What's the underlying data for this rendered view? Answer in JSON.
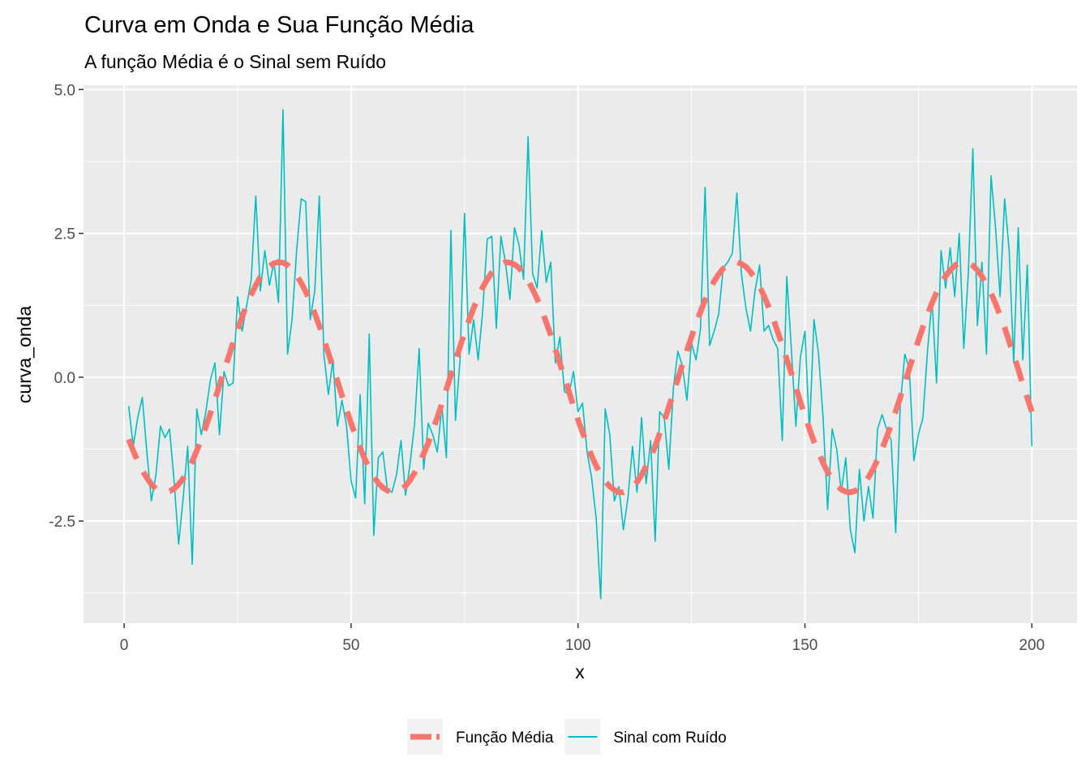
{
  "chart_data": {
    "type": "line",
    "title": "Curva em Onda e Sua Função Média",
    "subtitle": "A função Média é o Sinal sem Ruído",
    "x_label": "x",
    "y_label": "curva_onda",
    "x": [
      1,
      2,
      3,
      4,
      5,
      6,
      7,
      8,
      9,
      10,
      11,
      12,
      13,
      14,
      15,
      16,
      17,
      18,
      19,
      20,
      21,
      22,
      23,
      24,
      25,
      26,
      27,
      28,
      29,
      30,
      31,
      32,
      33,
      34,
      35,
      36,
      37,
      38,
      39,
      40,
      41,
      42,
      43,
      44,
      45,
      46,
      47,
      48,
      49,
      50,
      51,
      52,
      53,
      54,
      55,
      56,
      57,
      58,
      59,
      60,
      61,
      62,
      63,
      64,
      65,
      66,
      67,
      68,
      69,
      70,
      71,
      72,
      73,
      74,
      75,
      76,
      77,
      78,
      79,
      80,
      81,
      82,
      83,
      84,
      85,
      86,
      87,
      88,
      89,
      90,
      91,
      92,
      93,
      94,
      95,
      96,
      97,
      98,
      99,
      100,
      101,
      102,
      103,
      104,
      105,
      106,
      107,
      108,
      109,
      110,
      111,
      112,
      113,
      114,
      115,
      116,
      117,
      118,
      119,
      120,
      121,
      122,
      123,
      124,
      125,
      126,
      127,
      128,
      129,
      130,
      131,
      132,
      133,
      134,
      135,
      136,
      137,
      138,
      139,
      140,
      141,
      142,
      143,
      144,
      145,
      146,
      147,
      148,
      149,
      150,
      151,
      152,
      153,
      154,
      155,
      156,
      157,
      158,
      159,
      160,
      161,
      162,
      163,
      164,
      165,
      166,
      167,
      168,
      169,
      170,
      171,
      172,
      173,
      174,
      175,
      176,
      177,
      178,
      179,
      180,
      181,
      182,
      183,
      184,
      185,
      186,
      187,
      188,
      189,
      190,
      191,
      192,
      193,
      194,
      195,
      196,
      197,
      198,
      199,
      200
    ],
    "series": [
      {
        "name": "Função Média",
        "color": "#F8766D",
        "linetype": "dashed",
        "values": [
          -1.08,
          -1.28,
          -1.46,
          -1.62,
          -1.75,
          -1.86,
          -1.94,
          -1.98,
          -2.0,
          -1.98,
          -1.94,
          -1.86,
          -1.76,
          -1.62,
          -1.46,
          -1.28,
          -1.08,
          -0.86,
          -0.63,
          -0.39,
          -0.14,
          0.11,
          0.35,
          0.6,
          0.83,
          1.05,
          1.26,
          1.44,
          1.6,
          1.74,
          1.85,
          1.93,
          1.98,
          2.0,
          1.99,
          1.95,
          1.87,
          1.77,
          1.64,
          1.49,
          1.31,
          1.11,
          0.89,
          0.66,
          0.42,
          0.17,
          -0.07,
          -0.32,
          -0.56,
          -0.8,
          -1.02,
          -1.23,
          -1.42,
          -1.58,
          -1.72,
          -1.84,
          -1.92,
          -1.97,
          -2.0,
          -1.99,
          -1.95,
          -1.89,
          -1.79,
          -1.66,
          -1.51,
          -1.33,
          -1.14,
          -0.92,
          -0.7,
          -0.46,
          -0.21,
          0.04,
          0.29,
          0.53,
          0.77,
          0.99,
          1.2,
          1.39,
          1.56,
          1.7,
          1.82,
          1.91,
          1.97,
          2.0,
          1.99,
          1.96,
          1.9,
          1.8,
          1.68,
          1.53,
          1.36,
          1.17,
          0.95,
          0.73,
          0.49,
          0.24,
          0.0,
          -0.25,
          -0.5,
          -0.74,
          -0.96,
          -1.17,
          -1.37,
          -1.54,
          -1.69,
          -1.81,
          -1.9,
          -1.96,
          -2.0,
          -2.0,
          -1.97,
          -1.91,
          -1.82,
          -1.7,
          -1.55,
          -1.38,
          -1.2,
          -0.98,
          -0.76,
          -0.52,
          -0.28,
          -0.03,
          0.22,
          0.46,
          0.7,
          0.93,
          1.14,
          1.34,
          1.51,
          1.67,
          1.79,
          1.89,
          1.96,
          1.99,
          2.0,
          1.97,
          1.92,
          1.83,
          1.72,
          1.58,
          1.41,
          1.22,
          1.02,
          0.79,
          0.56,
          0.31,
          0.07,
          -0.18,
          -0.43,
          -0.67,
          -0.9,
          -1.12,
          -1.31,
          -1.49,
          -1.65,
          -1.78,
          -1.88,
          -1.95,
          -1.99,
          -2.0,
          -1.98,
          -1.93,
          -1.85,
          -1.74,
          -1.6,
          -1.43,
          -1.25,
          -1.04,
          -0.83,
          -0.59,
          -0.35,
          -0.1,
          0.15,
          0.4,
          0.64,
          0.87,
          1.09,
          1.29,
          1.47,
          1.63,
          1.76,
          1.86,
          1.94,
          1.99,
          2.0,
          1.98,
          1.94,
          1.86,
          1.75,
          1.62,
          1.46,
          1.28,
          1.07,
          0.86,
          0.62,
          0.38,
          0.14,
          -0.12,
          -0.36,
          -0.6
        ]
      },
      {
        "name": "Sinal com Ruído",
        "color": "#00BFC4",
        "linetype": "solid",
        "values": [
          -0.5,
          -1.2,
          -0.7,
          -0.35,
          -1.3,
          -2.15,
          -1.7,
          -0.85,
          -1.05,
          -0.9,
          -1.8,
          -2.9,
          -2.1,
          -1.2,
          -3.25,
          -0.55,
          -1.0,
          -0.6,
          -0.05,
          0.25,
          -1.0,
          0.1,
          -0.15,
          -0.1,
          1.4,
          0.8,
          1.25,
          1.7,
          3.15,
          1.5,
          2.2,
          1.6,
          2.0,
          1.3,
          4.65,
          0.4,
          1.0,
          2.2,
          3.1,
          3.05,
          1.0,
          1.5,
          3.15,
          0.4,
          -0.3,
          0.3,
          -0.85,
          -0.4,
          -0.85,
          -1.8,
          -2.1,
          -0.3,
          -2.2,
          0.75,
          -2.75,
          -1.4,
          -1.3,
          -1.95,
          -2.0,
          -1.7,
          -1.1,
          -2.05,
          -1.5,
          -0.8,
          0.5,
          -1.6,
          -0.8,
          -1.0,
          -1.3,
          -0.5,
          -1.4,
          2.55,
          -0.75,
          0.3,
          2.85,
          0.4,
          1.0,
          0.3,
          1.15,
          2.4,
          2.45,
          0.85,
          2.45,
          2.0,
          1.35,
          2.6,
          2.3,
          1.7,
          4.18,
          1.8,
          1.55,
          2.55,
          1.65,
          2.0,
          0.25,
          0.7,
          -0.25,
          -0.3,
          0.1,
          -0.6,
          -0.45,
          -1.3,
          -1.75,
          -2.45,
          -3.85,
          -0.55,
          -1.0,
          -2.15,
          -1.9,
          -2.65,
          -2.1,
          -1.2,
          -2.0,
          -0.7,
          -1.85,
          -1.1,
          -2.85,
          -0.6,
          -0.7,
          -1.6,
          -0.2,
          0.45,
          0.2,
          -0.4,
          0.6,
          0.3,
          0.85,
          3.3,
          0.55,
          0.8,
          1.1,
          1.9,
          2.0,
          2.15,
          3.2,
          1.8,
          1.2,
          0.8,
          1.5,
          1.95,
          0.8,
          0.9,
          0.65,
          0.5,
          -1.1,
          1.75,
          0.5,
          -0.85,
          0.35,
          0.8,
          -0.95,
          1.0,
          0.4,
          -0.7,
          -2.3,
          -0.9,
          -1.25,
          -2.0,
          -1.4,
          -2.65,
          -3.05,
          -1.6,
          -2.5,
          -1.9,
          -2.45,
          -0.9,
          -0.65,
          -0.9,
          -1.1,
          -2.7,
          -0.5,
          0.4,
          0.15,
          -1.45,
          -1.0,
          -0.7,
          0.45,
          1.35,
          -0.1,
          2.2,
          1.55,
          2.25,
          1.4,
          2.5,
          0.5,
          1.8,
          3.97,
          0.9,
          2.0,
          0.4,
          3.5,
          2.6,
          1.4,
          3.1,
          2.2,
          0.25,
          2.6,
          0.3,
          1.95,
          -1.2
        ]
      }
    ],
    "xlim": [
      -8.95,
      209.95
    ],
    "ylim": [
      -4.275,
      5.075
    ],
    "xticks": [
      0,
      50,
      100,
      150,
      200
    ],
    "yticks": [
      {
        "value": -2.5,
        "label": "-2.5"
      },
      {
        "value": 0,
        "label": "0.0"
      },
      {
        "value": 2.5,
        "label": "2.5"
      },
      {
        "value": 5,
        "label": "5.0"
      }
    ],
    "xminor_ticks": [
      25,
      75,
      125,
      175
    ],
    "yminor_ticks": [
      -3.75,
      -1.25,
      1.25,
      3.75
    ],
    "grid": true,
    "legend_position": "bottom"
  }
}
